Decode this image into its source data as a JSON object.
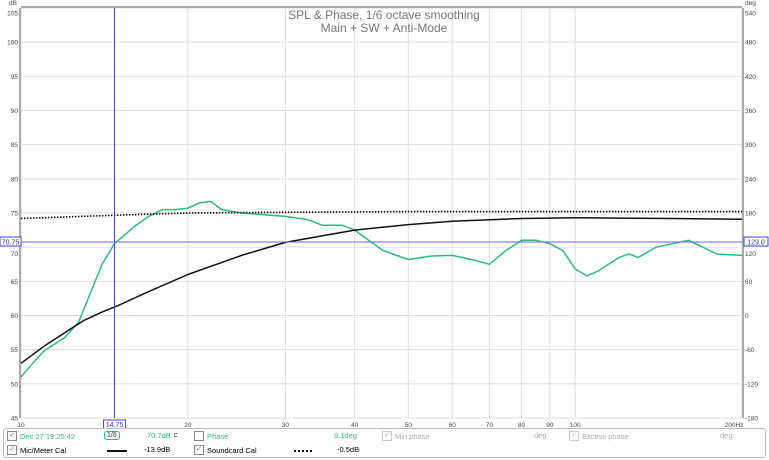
{
  "chart_data": {
    "type": "line",
    "title": "SPL & Phase, 1/6 octave smoothing",
    "subtitle": "Main + SW + Anti-Mode",
    "ylabel": "dB",
    "y2label": "deg",
    "xunit": "Hz",
    "xlim": [
      10,
      200
    ],
    "xscale": "log",
    "ylim": [
      45,
      105
    ],
    "y2lim": [
      -180,
      540
    ],
    "xticks": [
      "10",
      "20",
      "30",
      "40",
      "50",
      "60",
      "70",
      "80",
      "90",
      "100",
      "200Hz"
    ],
    "xtick_values": [
      10,
      20,
      30,
      40,
      50,
      60,
      70,
      80,
      90,
      100,
      200
    ],
    "yticks": [
      45,
      50,
      55,
      60,
      65,
      70,
      75,
      80,
      85,
      90,
      95,
      100,
      105
    ],
    "y2ticks": [
      -180,
      -120,
      -60,
      0,
      60,
      120,
      180,
      240,
      300,
      360,
      420,
      480,
      540
    ],
    "cursor": {
      "x_label": "14.75",
      "y_label": "70.75",
      "y2_label": "129.0",
      "x": 14.75,
      "y": 70.75
    },
    "series": [
      {
        "name": "SPL",
        "color": "#2bbd7e",
        "style": "solid",
        "points": [
          [
            10,
            51
          ],
          [
            10.5,
            53
          ],
          [
            11,
            54.8
          ],
          [
            12,
            56.8
          ],
          [
            12.7,
            59
          ],
          [
            13.3,
            63
          ],
          [
            14,
            67.5
          ],
          [
            14.75,
            70.5
          ],
          [
            16,
            73
          ],
          [
            17,
            74.5
          ],
          [
            18,
            75.5
          ],
          [
            19,
            75.5
          ],
          [
            20,
            75.7
          ],
          [
            21,
            76.5
          ],
          [
            22,
            76.7
          ],
          [
            23,
            75.5
          ],
          [
            25,
            75
          ],
          [
            28,
            74.7
          ],
          [
            30,
            74.5
          ],
          [
            33,
            74
          ],
          [
            35,
            73.2
          ],
          [
            38,
            73.2
          ],
          [
            40,
            72.5
          ],
          [
            45,
            69.5
          ],
          [
            50,
            68.2
          ],
          [
            55,
            68.7
          ],
          [
            60,
            68.8
          ],
          [
            65,
            68.2
          ],
          [
            70,
            67.5
          ],
          [
            75,
            69.5
          ],
          [
            80,
            71
          ],
          [
            85,
            71
          ],
          [
            90,
            70.5
          ],
          [
            95,
            69.5
          ],
          [
            100,
            66.8
          ],
          [
            105,
            65.8
          ],
          [
            110,
            66.5
          ],
          [
            120,
            68.5
          ],
          [
            125,
            69
          ],
          [
            130,
            68.5
          ],
          [
            140,
            70
          ],
          [
            150,
            70.5
          ],
          [
            160,
            71
          ],
          [
            170,
            70
          ],
          [
            180,
            69
          ],
          [
            200,
            68.8
          ]
        ]
      },
      {
        "name": "Mic/Meter Cal",
        "color": "#111111",
        "style": "solid",
        "points": [
          [
            10,
            53
          ],
          [
            11,
            55.5
          ],
          [
            12,
            57.5
          ],
          [
            13,
            59.3
          ],
          [
            14,
            60.5
          ],
          [
            15,
            61.5
          ],
          [
            17,
            63.5
          ],
          [
            20,
            66
          ],
          [
            25,
            68.8
          ],
          [
            30,
            70.7
          ],
          [
            40,
            72.5
          ],
          [
            50,
            73.3
          ],
          [
            60,
            73.8
          ],
          [
            80,
            74.2
          ],
          [
            100,
            74.3
          ],
          [
            150,
            74.2
          ],
          [
            200,
            74.1
          ]
        ]
      },
      {
        "name": "Soundcard Cal",
        "color": "#111111",
        "style": "dotted",
        "points": [
          [
            10,
            74.2
          ],
          [
            15,
            74.7
          ],
          [
            20,
            75
          ],
          [
            30,
            75.1
          ],
          [
            50,
            75.2
          ],
          [
            200,
            75.2
          ]
        ]
      }
    ]
  },
  "legend": {
    "timestamp": "Dec 27 19:25:42",
    "smoothing": "1/6",
    "spl_value": "70.7dB",
    "spl_unit_sup": "C",
    "phase_label": "Phase",
    "phase_value": "9.1deg",
    "min_phase_label": "Min phase",
    "min_phase_unit": "deg",
    "excess_phase_label": "Excess phase",
    "excess_phase_unit": "deg",
    "mic_cal_label": "Mic/Meter Cal",
    "mic_cal_value": "-13.9dB",
    "sc_cal_label": "Soundcard Cal",
    "sc_cal_value": "-0.5dB",
    "check": "✓"
  }
}
